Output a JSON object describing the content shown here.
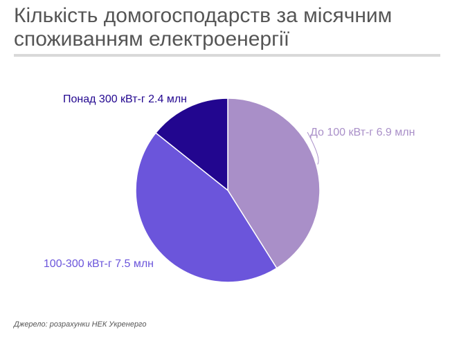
{
  "title": "Кількість домогосподарств за місячним\nспоживанням електроенергії",
  "source": "Джерело: розрахунки НЕК Укренерго",
  "chart_data": {
    "type": "pie",
    "slices": [
      {
        "label": "До 100 кВт-г",
        "value": 6.9,
        "value_label": "6.9 млн",
        "color": "#a98fc8"
      },
      {
        "label": "100-300 кВт-г",
        "value": 7.5,
        "value_label": "7.5 млн",
        "color": "#6b55db"
      },
      {
        "label": "Понад 300 кВт-г",
        "value": 2.4,
        "value_label": "2.4 млн",
        "color": "#22068f"
      }
    ]
  }
}
